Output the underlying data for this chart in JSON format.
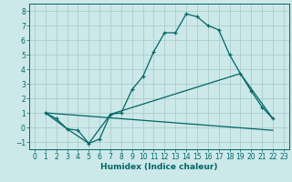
{
  "xlabel": "Humidex (Indice chaleur)",
  "xlim": [
    -0.5,
    23.5
  ],
  "ylim": [
    -1.5,
    8.5
  ],
  "xticks": [
    0,
    1,
    2,
    3,
    4,
    5,
    6,
    7,
    8,
    9,
    10,
    11,
    12,
    13,
    14,
    15,
    16,
    17,
    18,
    19,
    20,
    21,
    22,
    23
  ],
  "yticks": [
    -1,
    0,
    1,
    2,
    3,
    4,
    5,
    6,
    7,
    8
  ],
  "bg_color": "#cce8e8",
  "grid_color": "#aacece",
  "line_color": "#006666",
  "line1": [
    [
      1,
      1
    ],
    [
      2,
      0.6
    ],
    [
      3,
      -0.1
    ],
    [
      4,
      -0.2
    ],
    [
      5,
      -1.1
    ],
    [
      6,
      -0.8
    ],
    [
      7,
      0.9
    ],
    [
      8,
      1.0
    ],
    [
      9,
      2.6
    ],
    [
      10,
      3.5
    ],
    [
      11,
      5.2
    ],
    [
      12,
      6.5
    ],
    [
      13,
      6.5
    ],
    [
      14,
      7.8
    ],
    [
      15,
      7.6
    ],
    [
      16,
      7.0
    ],
    [
      17,
      6.7
    ],
    [
      18,
      5.0
    ],
    [
      19,
      3.7
    ],
    [
      20,
      2.5
    ],
    [
      21,
      1.4
    ],
    [
      22,
      0.6
    ]
  ],
  "line2": [
    [
      1,
      1
    ],
    [
      3,
      -0.1
    ],
    [
      5,
      -1.1
    ],
    [
      7,
      0.9
    ],
    [
      19,
      3.7
    ],
    [
      22,
      0.6
    ]
  ],
  "line3": [
    [
      1,
      1
    ],
    [
      22,
      -0.2
    ]
  ],
  "tick_fontsize": 5.5,
  "label_fontsize": 6.5
}
